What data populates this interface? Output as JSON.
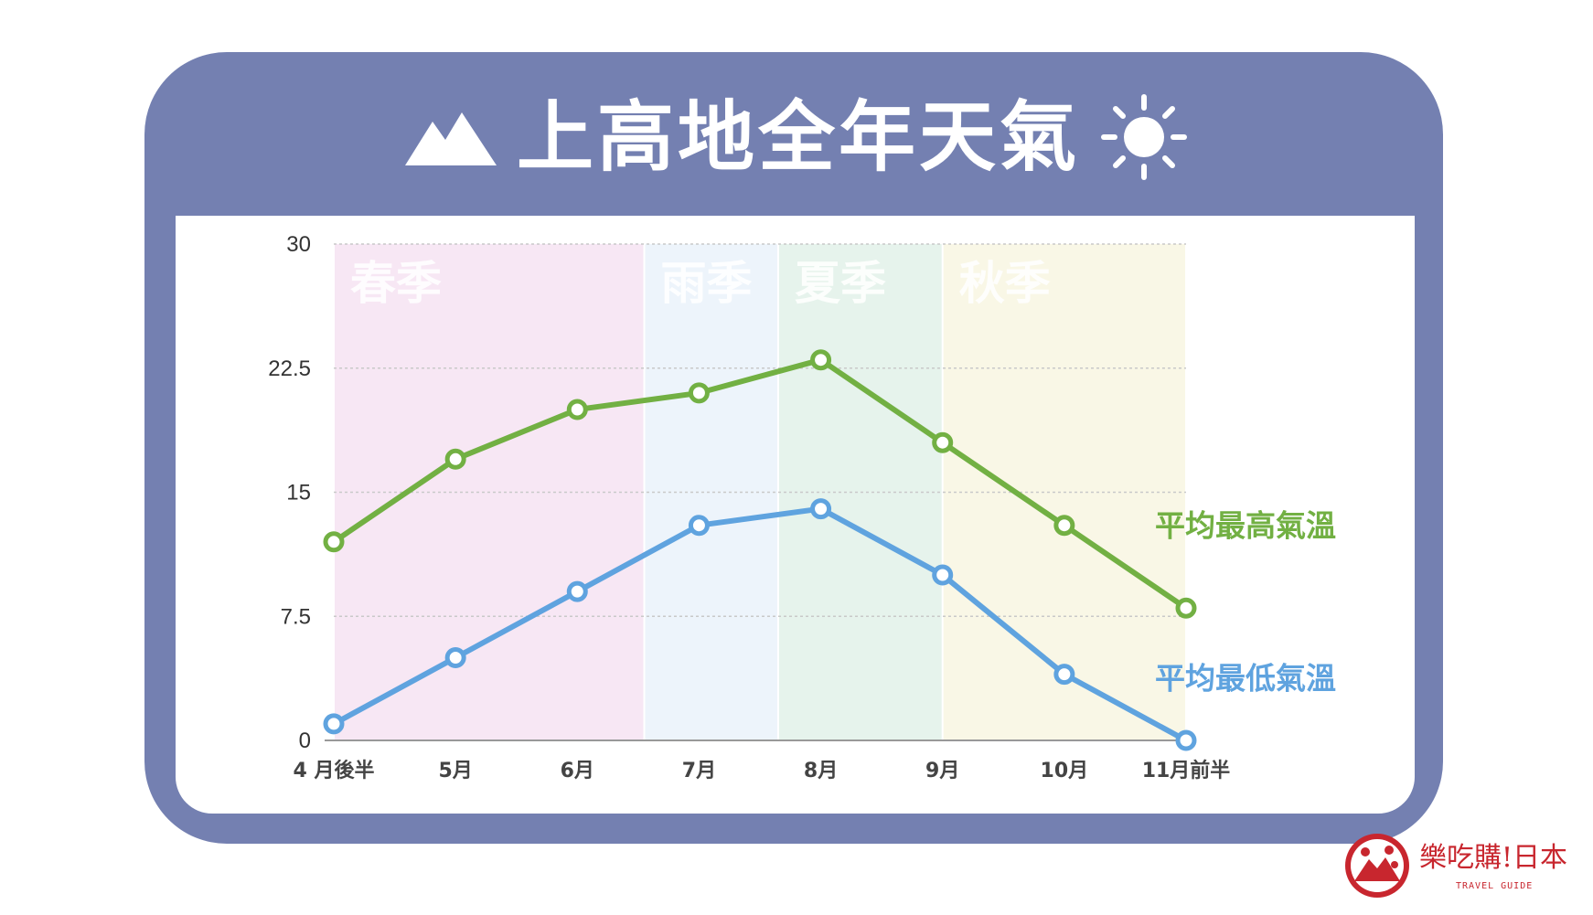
{
  "header": {
    "title": "上高地全年天氣",
    "mountain_icon": "mountain-icon",
    "sun_icon": "sun-icon"
  },
  "colors": {
    "frame": "#7480b1",
    "high": "#72b043",
    "low": "#5fa3df",
    "spring": "#f7e7f4",
    "rain": "#edf4fb",
    "summer": "#e6f3ec",
    "autumn": "#f9f7e6",
    "brand": "#c8262e"
  },
  "chart_data": {
    "type": "line",
    "categories": [
      "4 月後半",
      "5月",
      "6月",
      "7月",
      "8月",
      "9月",
      "10月",
      "11月前半"
    ],
    "series": [
      {
        "name": "平均最高氣溫",
        "values": [
          12,
          17,
          20,
          21,
          23,
          18,
          13,
          8
        ]
      },
      {
        "name": "平均最低氣溫",
        "values": [
          1,
          5,
          9,
          13,
          14,
          10,
          4,
          0
        ]
      }
    ],
    "y_ticks": [
      "30",
      "22.5",
      "15",
      "7.5",
      "0"
    ],
    "ylim": [
      0,
      30
    ],
    "grid": true,
    "seasons": [
      {
        "label": "春季",
        "from": 0,
        "to": 2.55
      },
      {
        "label": "雨季",
        "from": 2.55,
        "to": 3.65
      },
      {
        "label": "夏季",
        "from": 3.65,
        "to": 5.0
      },
      {
        "label": "秋季",
        "from": 5.0,
        "to": 7.0
      }
    ],
    "title": "",
    "xlabel": "",
    "ylabel": ""
  },
  "brand": {
    "name": "樂吃購!日本",
    "sub": "TRAVEL GUIDE",
    "logo_icon": "brand-logo-icon"
  }
}
